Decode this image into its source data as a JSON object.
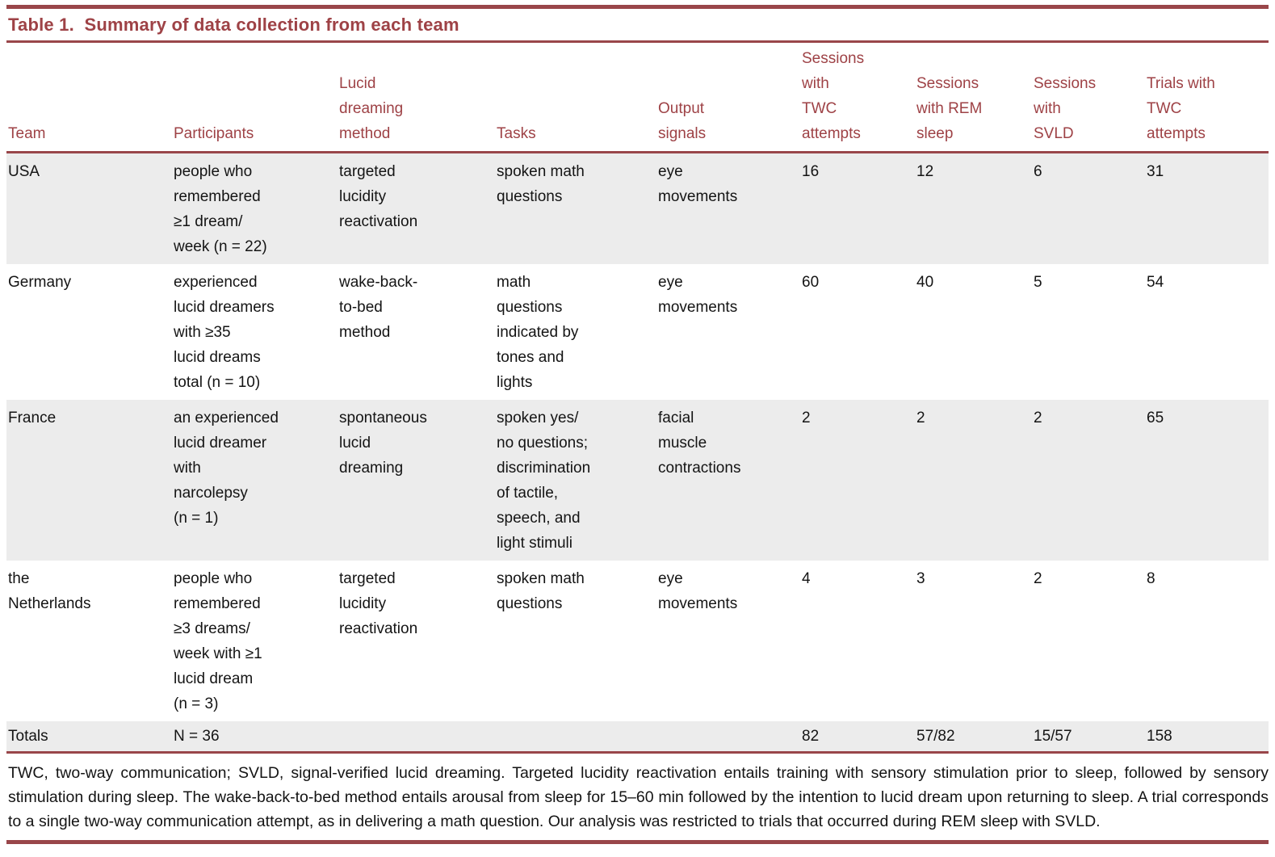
{
  "title": "Table 1.  Summary of data collection from each team",
  "colors": {
    "accent_maroon": "#9e4246",
    "rule_maroon": "#99464a",
    "row_shade": "#ececec",
    "body_text": "#141414",
    "background": "#ffffff"
  },
  "table": {
    "columns": [
      {
        "label": "Team"
      },
      {
        "label": "Participants"
      },
      {
        "label": "Lucid\ndreaming\nmethod"
      },
      {
        "label": "Tasks"
      },
      {
        "label": "Output\nsignals"
      },
      {
        "label": "Sessions\nwith\nTWC\nattempts"
      },
      {
        "label": "Sessions\nwith REM\nsleep"
      },
      {
        "label": "Sessions\nwith\nSVLD"
      },
      {
        "label": "Trials with\nTWC\nattempts"
      }
    ],
    "rows": [
      {
        "team": "USA",
        "participants": "people who\nremembered\n≥1 dream/\nweek (n = 22)",
        "method": "targeted\nlucidity\nreactivation",
        "tasks": "spoken math\nquestions",
        "output": "eye\nmovements",
        "twc": "16",
        "rem": "12",
        "svld": "6",
        "trials": "31"
      },
      {
        "team": "Germany",
        "participants": "experienced\nlucid dreamers\nwith ≥35\nlucid dreams\ntotal (n = 10)",
        "method": "wake-back-\nto-bed\nmethod",
        "tasks": "math\nquestions\nindicated by\ntones and\nlights",
        "output": "eye\nmovements",
        "twc": "60",
        "rem": "40",
        "svld": "5",
        "trials": "54"
      },
      {
        "team": "France",
        "participants": "an experienced\nlucid dreamer\nwith\nnarcolepsy\n(n = 1)",
        "method": "spontaneous\nlucid\ndreaming",
        "tasks": "spoken yes/\nno questions;\ndiscrimination\nof tactile,\nspeech, and\nlight stimuli",
        "output": "facial\nmuscle\ncontractions",
        "twc": "2",
        "rem": "2",
        "svld": "2",
        "trials": "65"
      },
      {
        "team": "the\nNetherlands",
        "participants": "people who\nremembered\n≥3 dreams/\nweek with ≥1\nlucid dream\n(n = 3)",
        "method": "targeted\nlucidity\nreactivation",
        "tasks": "spoken math\nquestions",
        "output": "eye\nmovements",
        "twc": "4",
        "rem": "3",
        "svld": "2",
        "trials": "8"
      },
      {
        "team": "Totals",
        "participants": "N = 36",
        "method": "",
        "tasks": "",
        "output": "",
        "twc": "82",
        "rem": "57/82",
        "svld": "15/57",
        "trials": "158"
      }
    ]
  },
  "footnote": "TWC, two-way communication; SVLD, signal-verified lucid dreaming. Targeted lucidity reactivation entails training with sensory stimulation prior to sleep, followed by sensory stimulation during sleep. The wake-back-to-bed method entails arousal from sleep for 15–60 min followed by the intention to lucid dream upon returning to sleep. A trial corresponds to a single two-way communication attempt, as in delivering a math question. Our analysis was restricted to trials that occurred during REM sleep with SVLD."
}
